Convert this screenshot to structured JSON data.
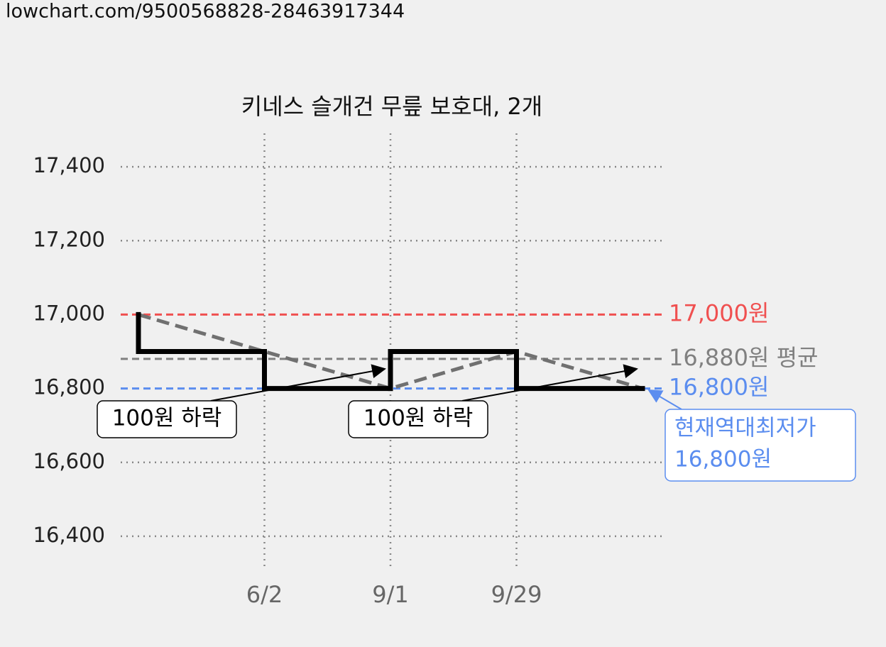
{
  "header": {
    "url": "lowchart.com/9500568828-28463917344"
  },
  "chart_data": {
    "type": "step",
    "title": "키네스 슬개건 무릎 보호대, 2개",
    "categories": [
      null,
      "6/2",
      "9/1",
      "9/29",
      null
    ],
    "series": [
      {
        "color": "#000000",
        "values": [
          17000,
          16900,
          16800,
          16900,
          16800
        ]
      }
    ],
    "trend_color": "#707070",
    "ylim": [
      16300,
      17500
    ],
    "yticks": [
      {
        "value": 16400,
        "label": "16,400"
      },
      {
        "value": 16600,
        "label": "16,600"
      },
      {
        "value": 16800,
        "label": "16,800"
      },
      {
        "value": 17000,
        "label": "17,000"
      },
      {
        "value": 17200,
        "label": "17,200"
      },
      {
        "value": 17400,
        "label": "17,400"
      }
    ],
    "grid": true,
    "reference_lines": [
      {
        "value": 17000,
        "label": "17,000원",
        "color": "#f05050"
      },
      {
        "value": 16880,
        "label": "16,880원 평균",
        "color": "#808080"
      },
      {
        "value": 16800,
        "label": "16,800원",
        "color": "#5b8def"
      }
    ],
    "annotations": [
      "100원 하락",
      "100원 하락"
    ],
    "low_callout": [
      "현재역대최저가",
      "16,800원"
    ]
  }
}
